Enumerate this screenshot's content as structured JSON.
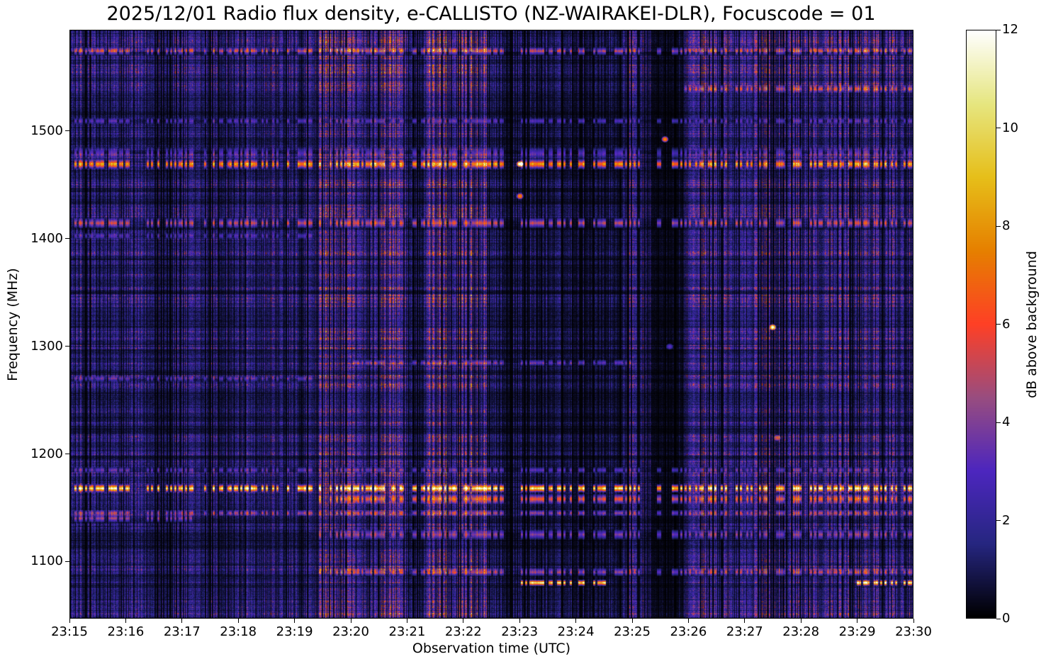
{
  "chart_data": {
    "type": "heatmap",
    "title": "2025/12/01 Radio flux density, e-CALLISTO (NZ-WAIRAKEI-DLR), Focuscode = 01",
    "xlabel": "Observation time (UTC)",
    "ylabel": "Frequency (MHz)",
    "colorbar_label": "dB above background",
    "colormap": "CMRmap",
    "colormap_stops": [
      "#000000",
      "#262680",
      "#4d26bf",
      "#994d80",
      "#ff4026",
      "#e68000",
      "#e6bf1a",
      "#e6e680",
      "#ffffff"
    ],
    "xlim": [
      "23:15:00",
      "23:30:00"
    ],
    "ylim": [
      1047,
      1594
    ],
    "clim": [
      0,
      12
    ],
    "x_ticks": [
      "23:15",
      "23:16",
      "23:17",
      "23:18",
      "23:19",
      "23:20",
      "23:21",
      "23:22",
      "23:23",
      "23:24",
      "23:25",
      "23:26",
      "23:27",
      "23:28",
      "23:29",
      "23:30"
    ],
    "y_ticks": [
      1100,
      1200,
      1300,
      1400,
      1500
    ],
    "c_ticks": [
      0,
      2,
      4,
      6,
      8,
      10,
      12
    ],
    "activity_intervals": [
      {
        "start": "23:15:00",
        "end": "23:19:25",
        "level_db": 1.6
      },
      {
        "start": "23:19:25",
        "end": "23:20:05",
        "level_db": 2.8
      },
      {
        "start": "23:20:05",
        "end": "23:20:30",
        "level_db": 1.8
      },
      {
        "start": "23:20:30",
        "end": "23:21:00",
        "level_db": 3.0
      },
      {
        "start": "23:21:00",
        "end": "23:21:20",
        "level_db": 1.2
      },
      {
        "start": "23:21:20",
        "end": "23:22:25",
        "level_db": 3.2
      },
      {
        "start": "23:22:25",
        "end": "23:24:50",
        "level_db": 1.0
      },
      {
        "start": "23:24:50",
        "end": "23:25:20",
        "level_db": 2.0
      },
      {
        "start": "23:25:20",
        "end": "23:25:55",
        "level_db": 0.4
      },
      {
        "start": "23:25:55",
        "end": "23:30:00",
        "level_db": 2.2
      }
    ],
    "bands": [
      {
        "freq_mhz": 1470,
        "width_mhz": 5,
        "level_db": 8,
        "start": "23:15:00",
        "end": "23:30:00"
      },
      {
        "freq_mhz": 1480,
        "width_mhz": 6,
        "level_db": 3,
        "start": "23:15:00",
        "end": "23:30:00"
      },
      {
        "freq_mhz": 1415,
        "width_mhz": 5,
        "level_db": 5,
        "start": "23:15:00",
        "end": "23:30:00"
      },
      {
        "freq_mhz": 1403,
        "width_mhz": 3,
        "level_db": 2.5,
        "start": "23:15:00",
        "end": "23:19:25"
      },
      {
        "freq_mhz": 1168,
        "width_mhz": 4,
        "level_db": 11,
        "start": "23:15:00",
        "end": "23:30:00"
      },
      {
        "freq_mhz": 1158,
        "width_mhz": 5,
        "level_db": 6,
        "start": "23:19:25",
        "end": "23:30:00"
      },
      {
        "freq_mhz": 1145,
        "width_mhz": 3,
        "level_db": 4,
        "start": "23:15:00",
        "end": "23:30:00"
      },
      {
        "freq_mhz": 1140,
        "width_mhz": 4,
        "level_db": 4,
        "start": "23:15:00",
        "end": "23:17:10"
      },
      {
        "freq_mhz": 1185,
        "width_mhz": 3,
        "level_db": 3,
        "start": "23:15:00",
        "end": "23:30:00"
      },
      {
        "freq_mhz": 1285,
        "width_mhz": 3,
        "level_db": 3,
        "start": "23:20:00",
        "end": "23:25:00"
      },
      {
        "freq_mhz": 1270,
        "width_mhz": 3,
        "level_db": 2.5,
        "start": "23:15:00",
        "end": "23:19:25"
      },
      {
        "freq_mhz": 1540,
        "width_mhz": 4,
        "level_db": 4.5,
        "start": "23:25:55",
        "end": "23:30:00"
      },
      {
        "freq_mhz": 1575,
        "width_mhz": 4,
        "level_db": 4.5,
        "start": "23:15:00",
        "end": "23:30:00"
      },
      {
        "freq_mhz": 1510,
        "width_mhz": 3,
        "level_db": 3,
        "start": "23:15:00",
        "end": "23:30:00"
      },
      {
        "freq_mhz": 1090,
        "width_mhz": 4,
        "level_db": 4,
        "start": "23:19:25",
        "end": "23:30:00"
      },
      {
        "freq_mhz": 1080,
        "width_mhz": 3,
        "level_db": 11,
        "start": "23:23:00",
        "end": "23:24:35"
      },
      {
        "freq_mhz": 1080,
        "width_mhz": 3,
        "level_db": 11,
        "start": "23:29:00",
        "end": "23:30:00"
      },
      {
        "freq_mhz": 1125,
        "width_mhz": 5,
        "level_db": 4,
        "start": "23:19:25",
        "end": "23:30:00"
      }
    ],
    "spots": [
      {
        "time": "23:27:30",
        "freq_mhz": 1318,
        "level_db": 12
      },
      {
        "time": "23:25:35",
        "freq_mhz": 1493,
        "level_db": 8
      },
      {
        "time": "23:23:00",
        "freq_mhz": 1440,
        "level_db": 7
      },
      {
        "time": "23:27:35",
        "freq_mhz": 1215,
        "level_db": 5
      },
      {
        "time": "23:25:40",
        "freq_mhz": 1300,
        "level_db": 3
      },
      {
        "time": "23:23:00",
        "freq_mhz": 1470,
        "level_db": 12
      }
    ]
  }
}
